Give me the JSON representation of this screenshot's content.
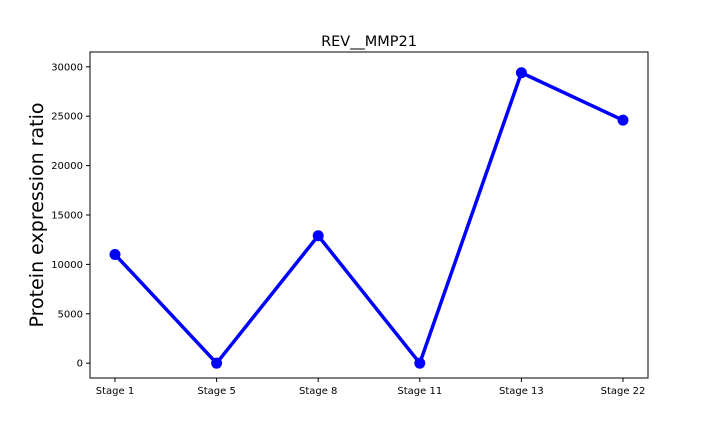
{
  "chart_data": {
    "type": "line",
    "title": "REV__MMP21",
    "xlabel": "",
    "ylabel": "Protein expression ratio",
    "categories": [
      "Stage 1",
      "Stage 5",
      "Stage 8",
      "Stage 11",
      "Stage 13",
      "Stage 22"
    ],
    "series": [
      {
        "values": [
          11000,
          0,
          12900,
          0,
          29400,
          24600
        ],
        "color": "#0000ff"
      }
    ],
    "yticks": [
      0,
      5000,
      10000,
      15000,
      20000,
      25000,
      30000
    ],
    "ylim": [
      -1500,
      31500
    ],
    "grid": false,
    "legend": "none"
  }
}
